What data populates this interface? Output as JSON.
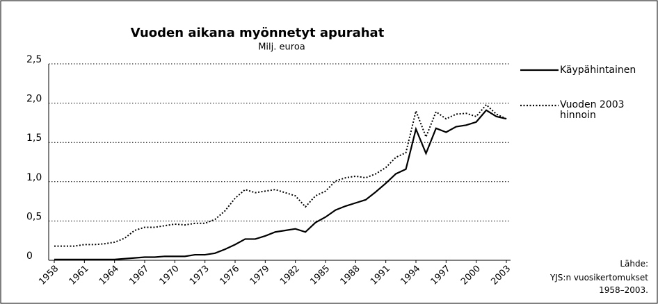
{
  "chart_data": {
    "type": "line",
    "title": "Vuoden aikana myönnetyt apurahat",
    "subtitle": "Milj. euroa",
    "x": [
      1958,
      1959,
      1960,
      1961,
      1962,
      1963,
      1964,
      1965,
      1966,
      1967,
      1968,
      1969,
      1970,
      1971,
      1972,
      1973,
      1974,
      1975,
      1976,
      1977,
      1978,
      1979,
      1980,
      1981,
      1982,
      1983,
      1984,
      1985,
      1986,
      1987,
      1988,
      1989,
      1990,
      1991,
      1992,
      1993,
      1994,
      1995,
      1996,
      1997,
      1998,
      1999,
      2000,
      2001,
      2002,
      2003
    ],
    "series": [
      {
        "name": "Käypähintainen",
        "color": "#000000",
        "style": "solid",
        "values": [
          0.01,
          0.01,
          0.01,
          0.01,
          0.01,
          0.01,
          0.01,
          0.02,
          0.03,
          0.04,
          0.04,
          0.05,
          0.05,
          0.05,
          0.07,
          0.07,
          0.09,
          0.14,
          0.2,
          0.27,
          0.27,
          0.31,
          0.36,
          0.38,
          0.4,
          0.36,
          0.48,
          0.55,
          0.64,
          0.69,
          0.73,
          0.77,
          0.87,
          0.98,
          1.1,
          1.16,
          1.67,
          1.36,
          1.68,
          1.63,
          1.7,
          1.72,
          1.76,
          1.91,
          1.83,
          1.8
        ]
      },
      {
        "name": "Vuoden 2003 hinnoin",
        "color": "#000000",
        "style": "dotted",
        "values": [
          0.18,
          0.18,
          0.18,
          0.2,
          0.2,
          0.21,
          0.23,
          0.28,
          0.38,
          0.42,
          0.42,
          0.44,
          0.46,
          0.45,
          0.47,
          0.47,
          0.52,
          0.63,
          0.79,
          0.9,
          0.86,
          0.88,
          0.9,
          0.86,
          0.82,
          0.68,
          0.82,
          0.88,
          1.01,
          1.05,
          1.07,
          1.05,
          1.1,
          1.18,
          1.31,
          1.37,
          1.9,
          1.57,
          1.89,
          1.8,
          1.86,
          1.87,
          1.83,
          1.98,
          1.86,
          1.8
        ]
      }
    ],
    "xlim": [
      1958,
      2003
    ],
    "xticks": [
      1958,
      1961,
      1964,
      1967,
      1970,
      1973,
      1976,
      1979,
      1982,
      1985,
      1988,
      1991,
      1994,
      1997,
      2000,
      2003
    ],
    "ylim": [
      0,
      2.5
    ],
    "yticks": [
      0,
      {
        "value": 0.5,
        "label": "0,5"
      },
      {
        "value": 1,
        "label": "1,0"
      },
      {
        "value": 1.5,
        "label": "1,5"
      },
      {
        "value": 2,
        "label": "2,0"
      },
      {
        "value": 2.5,
        "label": "2,5"
      }
    ],
    "grid": true,
    "legend": "right",
    "source": [
      "Lähde:",
      "YJS:n vuosikertomukset",
      "1958–2003."
    ]
  }
}
